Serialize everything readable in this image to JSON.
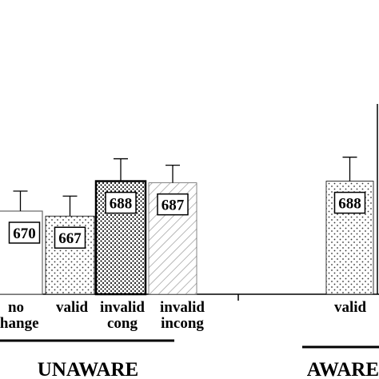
{
  "chart_data": {
    "type": "bar",
    "title": "",
    "xlabel": "",
    "ylabel": "",
    "groups": [
      {
        "name": "UNAWARE",
        "bars": [
          {
            "label": [
              "no",
              "change"
            ],
            "value": 670,
            "error": 25,
            "pattern": "white"
          },
          {
            "label": [
              "valid"
            ],
            "value": 667,
            "error": 25,
            "pattern": "dots"
          },
          {
            "label": [
              "invalid",
              "cong"
            ],
            "value": 688,
            "error": 28,
            "pattern": "dense-dots"
          },
          {
            "label": [
              "invalid",
              "incong"
            ],
            "value": 687,
            "error": 22,
            "pattern": "hatch"
          }
        ]
      },
      {
        "name": "AWARE",
        "bars": [
          {
            "label": [
              "valid"
            ],
            "value": 688,
            "error": 30,
            "pattern": "dots"
          }
        ]
      }
    ],
    "grid": false,
    "legend": "none"
  }
}
